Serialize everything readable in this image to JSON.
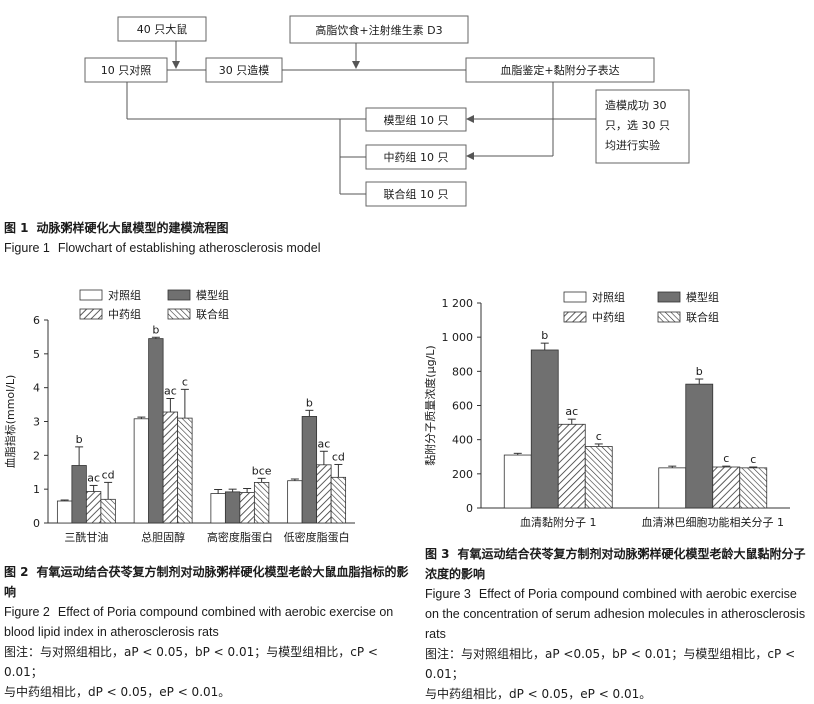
{
  "figure1": {
    "boxes": {
      "rats40": "40 只大鼠",
      "diet": "高脂饮食+注射维生素 D3",
      "control10": "10 只对照",
      "model30": "30 只造模",
      "lipid": "血脂鉴定+黏附分子表达",
      "model_group": "模型组 10 只",
      "herb_group": "中药组 10 只",
      "combined_group": "联合组 10 只",
      "success_lines": [
        "造模成功 30",
        "只，选 30 只",
        "均进行实验"
      ]
    },
    "caption_zh_label": "图 1",
    "caption_zh": "动脉粥样硬化大鼠模型的建模流程图",
    "caption_en_label": "Figure 1",
    "caption_en": "Flowchart of establishing atherosclerosis model"
  },
  "figure2": {
    "caption_zh_label": "图 2",
    "caption_zh": "有氧运动结合茯苓复方制剂对动脉粥样硬化模型老龄大鼠血脂指标的影响",
    "caption_en_label": "Figure 2",
    "caption_en": "Effect of Poria compound combined with aerobic exercise on blood lipid index in atherosclerosis rats",
    "note_line1": "图注：与对照组相比，aP < 0.05，bP < 0.01；与模型组相比，cP < 0.01；",
    "note_line2": "与中药组相比，dP < 0.05，eP < 0.01。"
  },
  "figure3": {
    "caption_zh_label": "图 3",
    "caption_zh": "有氧运动结合茯苓复方制剂对动脉粥样硬化模型老龄大鼠黏附分子浓度的影响",
    "caption_en_label": "Figure 3",
    "caption_en": "Effect of Poria compound combined with aerobic exercise on the concentration of serum adhesion molecules in atherosclerosis rats",
    "note_line1": "图注：与对照组相比，aP <0.05，bP < 0.01；与模型组相比，cP < 0.01；",
    "note_line2": "与中药组相比，dP < 0.05，eP < 0.01。"
  },
  "chart_data": [
    {
      "type": "bar",
      "ylabel": "血脂指标(mmol/L)",
      "ylim": [
        0,
        6
      ],
      "yticks": [
        0,
        1,
        2,
        3,
        4,
        5,
        6
      ],
      "categories": [
        "三酰甘油",
        "总胆固醇",
        "高密度脂蛋白",
        "低密度脂蛋白"
      ],
      "legend": "top",
      "series": [
        {
          "name": "对照组",
          "pattern": "white",
          "values": [
            0.65,
            3.08,
            0.87,
            1.25
          ],
          "errors": [
            0.03,
            0.05,
            0.12,
            0.05
          ],
          "labels": [
            "",
            "",
            "",
            ""
          ]
        },
        {
          "name": "模型组",
          "pattern": "dark",
          "values": [
            1.7,
            5.45,
            0.92,
            3.15
          ],
          "errors": [
            0.55,
            0.04,
            0.08,
            0.18
          ],
          "labels": [
            "b",
            "b",
            "",
            "b"
          ]
        },
        {
          "name": "中药组",
          "pattern": "hatch-back",
          "values": [
            0.93,
            3.28,
            0.9,
            1.72
          ],
          "errors": [
            0.18,
            0.4,
            0.12,
            0.4
          ],
          "labels": [
            "ac",
            "ac",
            "",
            "ac"
          ]
        },
        {
          "name": "联合组",
          "pattern": "hatch-fwd",
          "values": [
            0.7,
            3.1,
            1.2,
            1.35
          ],
          "errors": [
            0.5,
            0.85,
            0.12,
            0.38
          ],
          "labels": [
            "cd",
            "c",
            "bce",
            "cd"
          ]
        }
      ]
    },
    {
      "type": "bar",
      "ylabel": "黏附分子质量浓度(μg/L)",
      "ylim": [
        0,
        1200
      ],
      "yticks": [
        0,
        200,
        400,
        600,
        800,
        1000,
        1200
      ],
      "ytick_labels": [
        "0",
        "200",
        "400",
        "600",
        "800",
        "1 000",
        "1 200"
      ],
      "categories": [
        "血清黏附分子 1",
        "血清淋巴细胞功能相关分子 1"
      ],
      "legend": "top",
      "series": [
        {
          "name": "对照组",
          "pattern": "white",
          "values": [
            310,
            235
          ],
          "errors": [
            10,
            10
          ],
          "labels": [
            "",
            ""
          ]
        },
        {
          "name": "模型组",
          "pattern": "dark",
          "values": [
            925,
            725
          ],
          "errors": [
            40,
            30
          ],
          "labels": [
            "b",
            "b"
          ]
        },
        {
          "name": "中药组",
          "pattern": "hatch-back",
          "values": [
            490,
            240
          ],
          "errors": [
            30,
            5
          ],
          "labels": [
            "ac",
            "c"
          ]
        },
        {
          "name": "联合组",
          "pattern": "hatch-fwd",
          "values": [
            360,
            235
          ],
          "errors": [
            15,
            5
          ],
          "labels": [
            "c",
            "c"
          ]
        }
      ]
    }
  ]
}
